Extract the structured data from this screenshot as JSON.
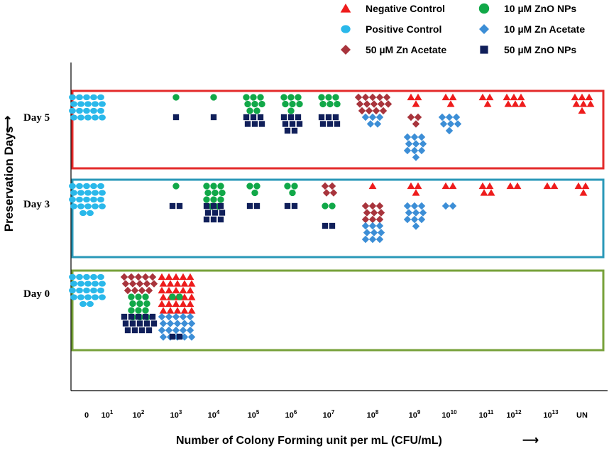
{
  "chart_data": {
    "type": "scatter",
    "title": "",
    "xlabel": "Number of Colony Forming unit per mL (CFU/mL)",
    "ylabel": "Preservation Days",
    "x_arrow": "⟶",
    "y_arrow": "⟶",
    "categories": [
      {
        "base": "0",
        "exp": ""
      },
      {
        "base": "10",
        "exp": "1"
      },
      {
        "base": "10",
        "exp": "2"
      },
      {
        "base": "10",
        "exp": "3"
      },
      {
        "base": "10",
        "exp": "4"
      },
      {
        "base": "10",
        "exp": "5"
      },
      {
        "base": "10",
        "exp": "6"
      },
      {
        "base": "10",
        "exp": "7"
      },
      {
        "base": "10",
        "exp": "8"
      },
      {
        "base": "10",
        "exp": "9"
      },
      {
        "base": "10",
        "exp": "10"
      },
      {
        "base": "10",
        "exp": "11"
      },
      {
        "base": "10",
        "exp": "12"
      },
      {
        "base": "10",
        "exp": "13"
      },
      {
        "base": "UN",
        "exp": ""
      }
    ],
    "days": [
      {
        "label": "Day 5",
        "color": "#e32b2b"
      },
      {
        "label": "Day 3",
        "color": "#2a98b8"
      },
      {
        "label": "Day 0",
        "color": "#77a13a"
      }
    ],
    "series": [
      {
        "name": "Negative Control",
        "marker": "triangle",
        "color": "#ee1c1c",
        "counts": {
          "Day 5": [
            0,
            0,
            0,
            0,
            0,
            0,
            0,
            0,
            0,
            3,
            3,
            3,
            6,
            0,
            7
          ],
          "Day 3": [
            0,
            0,
            0,
            0,
            0,
            0,
            0,
            0,
            1,
            3,
            2,
            4,
            2,
            2,
            3
          ],
          "Day 0": [
            0,
            0,
            0,
            30,
            0,
            0,
            0,
            0,
            0,
            0,
            0,
            0,
            0,
            0,
            0
          ]
        }
      },
      {
        "name": "Positive Control",
        "marker": "ellipse",
        "color": "#2ab8ea",
        "counts": {
          "Day 5": [
            20,
            0,
            0,
            0,
            0,
            0,
            0,
            0,
            0,
            0,
            0,
            0,
            0,
            0,
            0
          ],
          "Day 3": [
            22,
            0,
            0,
            0,
            0,
            0,
            0,
            0,
            0,
            0,
            0,
            0,
            0,
            0,
            0
          ],
          "Day 0": [
            22,
            0,
            0,
            0,
            0,
            0,
            0,
            0,
            0,
            0,
            0,
            0,
            0,
            0,
            0
          ]
        }
      },
      {
        "name": "50 µM Zn Acetate",
        "marker": "diamond",
        "color": "#a8343c",
        "counts": {
          "Day 5": [
            0,
            0,
            0,
            0,
            0,
            0,
            0,
            0,
            14,
            3,
            0,
            0,
            0,
            0,
            0
          ],
          "Day 3": [
            0,
            0,
            0,
            0,
            0,
            0,
            0,
            4,
            9,
            0,
            0,
            0,
            0,
            0,
            0
          ],
          "Day 0": [
            0,
            0,
            14,
            0,
            0,
            0,
            0,
            0,
            0,
            0,
            0,
            0,
            0,
            0,
            0
          ]
        }
      },
      {
        "name": "10 µM ZnO NPs",
        "marker": "circle",
        "color": "#11a848",
        "counts": {
          "Day 5": [
            0,
            0,
            0,
            1,
            1,
            8,
            7,
            6,
            0,
            0,
            0,
            0,
            0,
            0,
            0
          ],
          "Day 3": [
            0,
            0,
            0,
            1,
            11,
            3,
            3,
            2,
            0,
            0,
            0,
            0,
            0,
            0,
            0
          ],
          "Day 0": [
            0,
            0,
            12,
            2,
            0,
            0,
            0,
            0,
            0,
            0,
            0,
            0,
            0,
            0,
            0
          ]
        }
      },
      {
        "name": "10 µM Zn Acetate",
        "marker": "diamond",
        "color": "#3c8ed6",
        "counts": {
          "Day 5": [
            0,
            0,
            0,
            0,
            0,
            0,
            0,
            0,
            5,
            10,
            7,
            0,
            0,
            0,
            0
          ],
          "Day 3": [
            0,
            0,
            0,
            0,
            0,
            0,
            0,
            0,
            9,
            10,
            2,
            0,
            0,
            0,
            0
          ],
          "Day 0": [
            0,
            0,
            0,
            20,
            0,
            0,
            0,
            0,
            0,
            0,
            0,
            0,
            0,
            0,
            0
          ]
        }
      },
      {
        "name": "50 µM ZnO NPs",
        "marker": "square",
        "color": "#101f5a",
        "counts": {
          "Day 5": [
            0,
            0,
            0,
            1,
            1,
            6,
            8,
            6,
            0,
            0,
            0,
            0,
            0,
            0,
            0
          ],
          "Day 3": [
            0,
            0,
            0,
            2,
            9,
            2,
            2,
            2,
            0,
            0,
            0,
            0,
            0,
            0,
            0
          ],
          "Day 0": [
            0,
            0,
            14,
            2,
            0,
            0,
            0,
            0,
            0,
            0,
            0,
            0,
            0,
            0,
            0
          ]
        }
      }
    ],
    "legend_position": "top-right",
    "grid": false
  }
}
